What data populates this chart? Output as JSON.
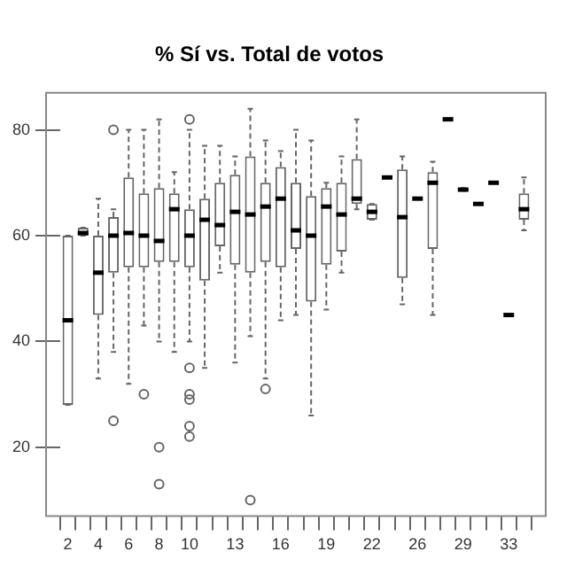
{
  "chart_data": {
    "type": "box",
    "title": "% Sí vs. Total de votos",
    "categories": [
      "2",
      null,
      "4",
      null,
      "6",
      null,
      "8",
      null,
      "10",
      null,
      null,
      "13",
      null,
      null,
      "16",
      null,
      null,
      "19",
      null,
      null,
      "22",
      null,
      null,
      "26",
      null,
      null,
      "29",
      null,
      null,
      "33",
      null
    ],
    "boxes": [
      {
        "low": 28,
        "q1": 28,
        "median": 44,
        "q3": 60,
        "high": 60
      },
      {
        "low": 60,
        "q1": 60,
        "median": 60.5,
        "q3": 61.5,
        "high": 61.5
      },
      {
        "low": 33,
        "q1": 45,
        "median": 53,
        "q3": 60,
        "high": 67
      },
      {
        "low": 38,
        "q1": 53,
        "median": 60,
        "q3": 63.5,
        "high": 65,
        "outliers": [
          80,
          25
        ]
      },
      {
        "low": 32,
        "q1": 54,
        "median": 60.5,
        "q3": 71,
        "high": 80
      },
      {
        "low": 43,
        "q1": 54,
        "median": 60,
        "q3": 68,
        "high": 80,
        "outliers": [
          30
        ]
      },
      {
        "low": 40,
        "q1": 55,
        "median": 59,
        "q3": 69,
        "high": 82,
        "outliers": [
          20,
          13
        ]
      },
      {
        "low": 38,
        "q1": 55,
        "median": 65,
        "q3": 68,
        "high": 72
      },
      {
        "low": 40,
        "q1": 54,
        "median": 60,
        "q3": 65,
        "high": 80,
        "outliers": [
          82,
          35,
          30,
          29,
          24,
          22
        ]
      },
      {
        "low": 35,
        "q1": 51.5,
        "median": 63,
        "q3": 67,
        "high": 77
      },
      {
        "low": 53,
        "q1": 58,
        "median": 62,
        "q3": 70,
        "high": 77
      },
      {
        "low": 36,
        "q1": 54.5,
        "median": 64.5,
        "q3": 71.5,
        "high": 75
      },
      {
        "low": 41,
        "q1": 53,
        "median": 64,
        "q3": 75,
        "high": 84,
        "outliers": [
          10
        ]
      },
      {
        "low": 33,
        "q1": 55,
        "median": 65.5,
        "q3": 70,
        "high": 78,
        "outliers": [
          31
        ]
      },
      {
        "low": 44,
        "q1": 54,
        "median": 67,
        "q3": 73,
        "high": 76
      },
      {
        "low": 45,
        "q1": 57.5,
        "median": 61,
        "q3": 70,
        "high": 80
      },
      {
        "low": 26,
        "q1": 47.5,
        "median": 60,
        "q3": 67.5,
        "high": 78
      },
      {
        "low": 46,
        "q1": 54.5,
        "median": 65.5,
        "q3": 69,
        "high": 70
      },
      {
        "low": 53,
        "q1": 57,
        "median": 64,
        "q3": 70,
        "high": 75
      },
      {
        "low": 65,
        "q1": 66,
        "median": 67,
        "q3": 74.5,
        "high": 82
      },
      {
        "low": 63,
        "q1": 63,
        "median": 64.5,
        "q3": 66,
        "high": 66
      },
      {
        "low": 71,
        "q1": 71,
        "median": 71,
        "q3": 71,
        "high": 71
      },
      {
        "low": 47,
        "q1": 52,
        "median": 63.5,
        "q3": 72.5,
        "high": 75
      },
      {
        "low": 67,
        "q1": 67,
        "median": 67,
        "q3": 67,
        "high": 67
      },
      {
        "low": 45,
        "q1": 57.5,
        "median": 70,
        "q3": 72,
        "high": 74
      },
      {
        "low": 82,
        "q1": 82,
        "median": 82,
        "q3": 82,
        "high": 82
      },
      {
        "low": 68.5,
        "q1": 68.5,
        "median": 68.7,
        "q3": 69,
        "high": 69
      },
      {
        "low": 66,
        "q1": 66,
        "median": 66,
        "q3": 66,
        "high": 66
      },
      {
        "low": 70,
        "q1": 70,
        "median": 70,
        "q3": 70,
        "high": 70
      },
      {
        "low": 45,
        "q1": 45,
        "median": 45,
        "q3": 45,
        "high": 45
      },
      {
        "low": 61,
        "q1": 63,
        "median": 65,
        "q3": 68,
        "high": 71
      }
    ],
    "ylim": [
      7,
      87
    ],
    "yticks": [
      20,
      40,
      60,
      80
    ]
  }
}
